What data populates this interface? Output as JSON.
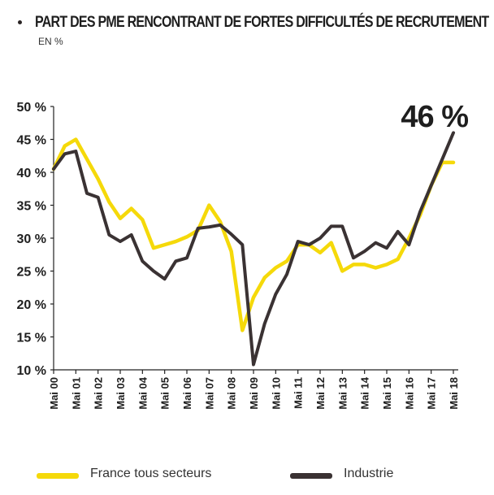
{
  "header": {
    "title": "PART DES PME RENCONTRANT DE FORTES DIFFICULTÉS DE RECRUTEMENT",
    "subtitle": "EN %"
  },
  "colors": {
    "france": "#f5d90a",
    "industrie": "#3a3233",
    "axis": "#222222",
    "text": "#1e1e1e"
  },
  "chart_data": {
    "type": "line",
    "title": "PART DES PME RENCONTRANT DE FORTES DIFFICULTÉS DE RECRUTEMENT",
    "subtitle": "EN %",
    "xlabel": "",
    "ylabel": "",
    "ylim": [
      10,
      50
    ],
    "yticks": [
      10,
      15,
      20,
      25,
      30,
      35,
      40,
      45,
      50
    ],
    "ytick_labels": [
      "10 %",
      "15 %",
      "20 %",
      "25 %",
      "30 %",
      "35 %",
      "40 %",
      "45 %",
      "50 %"
    ],
    "xlim": [
      2000,
      2018
    ],
    "x_tick_labels": [
      "Mai 00",
      "Mai 01",
      "Mai 02",
      "Mai 03",
      "Mai 04",
      "Mai 05",
      "Mai 06",
      "Mai 07",
      "Mai 08",
      "Mai 09",
      "Mai 10",
      "Mai 11",
      "Mai 12",
      "Mai 13",
      "Mai 14",
      "Mai 15",
      "Mai 16",
      "Mai 17",
      "Mai 18"
    ],
    "grid": false,
    "legend_position": "bottom",
    "annotation": {
      "text": "46 %",
      "x": 2018,
      "y": 46
    },
    "series": [
      {
        "name": "France tous secteurs",
        "color": "#f5d90a",
        "x": [
          2000,
          2000.5,
          2001,
          2001.5,
          2002,
          2002.5,
          2003,
          2003.5,
          2004,
          2004.5,
          2005,
          2005.5,
          2006,
          2006.5,
          2007,
          2007.5,
          2008,
          2008.5,
          2009,
          2009.5,
          2010,
          2010.5,
          2011,
          2011.5,
          2012,
          2012.5,
          2013,
          2013.5,
          2014,
          2014.5,
          2015,
          2015.5,
          2016,
          2016.5,
          2017,
          2017.5,
          2018
        ],
        "values": [
          40.5,
          44.0,
          45.0,
          42.0,
          39.0,
          35.5,
          33.0,
          34.5,
          32.8,
          28.5,
          29.0,
          29.5,
          30.2,
          31.2,
          35.0,
          32.5,
          28.0,
          16.0,
          21.0,
          24.0,
          25.5,
          26.5,
          29.0,
          29.0,
          27.8,
          29.3,
          25.0,
          26.0,
          26.0,
          25.5,
          26.0,
          26.8,
          30.0,
          33.5,
          38.0,
          41.5,
          41.5
        ]
      },
      {
        "name": "Industrie",
        "color": "#3a3233",
        "x": [
          2000,
          2000.5,
          2001,
          2001.5,
          2002,
          2002.5,
          2003,
          2003.5,
          2004,
          2004.5,
          2005,
          2005.5,
          2006,
          2006.5,
          2007,
          2007.5,
          2008,
          2008.5,
          2009,
          2009.5,
          2010,
          2010.5,
          2011,
          2011.5,
          2012,
          2012.5,
          2013,
          2013.5,
          2014,
          2014.5,
          2015,
          2015.5,
          2016,
          2016.5,
          2017,
          2017.5,
          2018
        ],
        "values": [
          40.5,
          42.8,
          43.2,
          36.8,
          36.2,
          30.5,
          29.5,
          30.5,
          26.5,
          25.0,
          23.8,
          26.5,
          27.0,
          31.5,
          31.7,
          32.0,
          30.6,
          29.0,
          10.8,
          17.0,
          21.5,
          24.5,
          29.5,
          29.0,
          30.0,
          31.8,
          31.8,
          27.0,
          28.0,
          29.3,
          28.5,
          31.0,
          29.0,
          34.0,
          38.0,
          42.0,
          46.0
        ]
      }
    ]
  },
  "legend": {
    "items": [
      {
        "label": "France tous secteurs",
        "color": "#f5d90a"
      },
      {
        "label": "Industrie",
        "color": "#3a3233"
      }
    ]
  }
}
